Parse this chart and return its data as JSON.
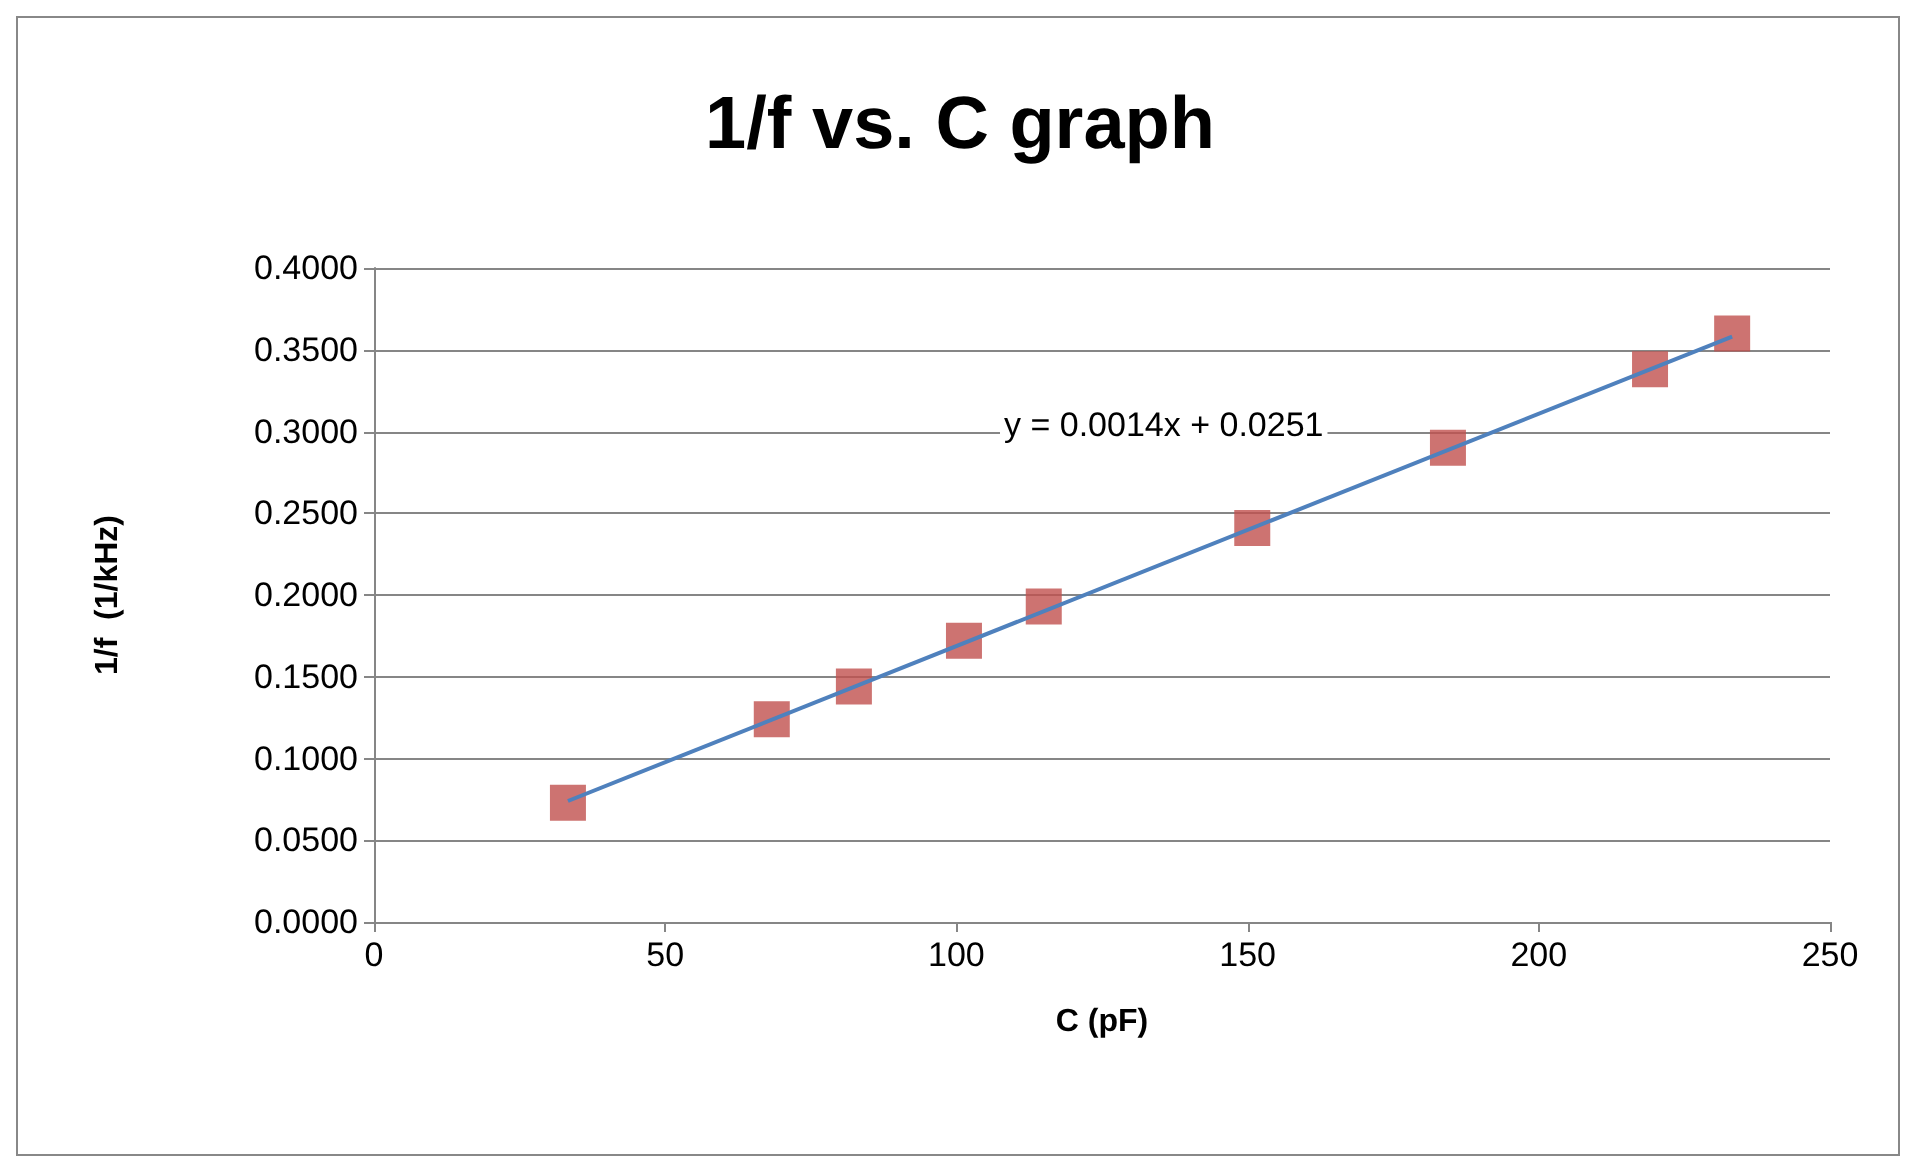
{
  "chart_data": {
    "type": "scatter",
    "title": "1/f vs. C graph",
    "xlabel": "C (pF)",
    "ylabel": "1/f  (1/kHz)",
    "xlim": [
      0,
      250
    ],
    "xticks": [
      0,
      50,
      100,
      150,
      200,
      250
    ],
    "ylim": [
      0,
      0.4
    ],
    "yticks": [
      {
        "value": 0,
        "label": "0.0000"
      },
      {
        "value": 0.05,
        "label": "0.0500"
      },
      {
        "value": 0.1,
        "label": "0.1000"
      },
      {
        "value": 0.15,
        "label": "0.1500"
      },
      {
        "value": 0.2,
        "label": "0.2000"
      },
      {
        "value": 0.25,
        "label": "0.2500"
      },
      {
        "value": 0.3,
        "label": "0.3000"
      },
      {
        "value": 0.35,
        "label": "0.3500"
      },
      {
        "value": 0.4,
        "label": "0.4000"
      }
    ],
    "grid": "y",
    "annotations": [
      "y = 0.0014x + 0.0251"
    ],
    "series": [
      {
        "marker": "square",
        "color": "#c0504d",
        "x": [
          33.3,
          68.3,
          82.4,
          101.3,
          115,
          150.8,
          184.4,
          219.1,
          233.2
        ],
        "values": [
          0.073,
          0.124,
          0.144,
          0.172,
          0.193,
          0.241,
          0.29,
          0.338,
          0.36
        ]
      },
      {
        "type": "line",
        "marker": "none",
        "color": "#4f81bd",
        "x": [
          33.3,
          233.2
        ],
        "values": [
          0.074,
          0.358
        ]
      }
    ]
  }
}
